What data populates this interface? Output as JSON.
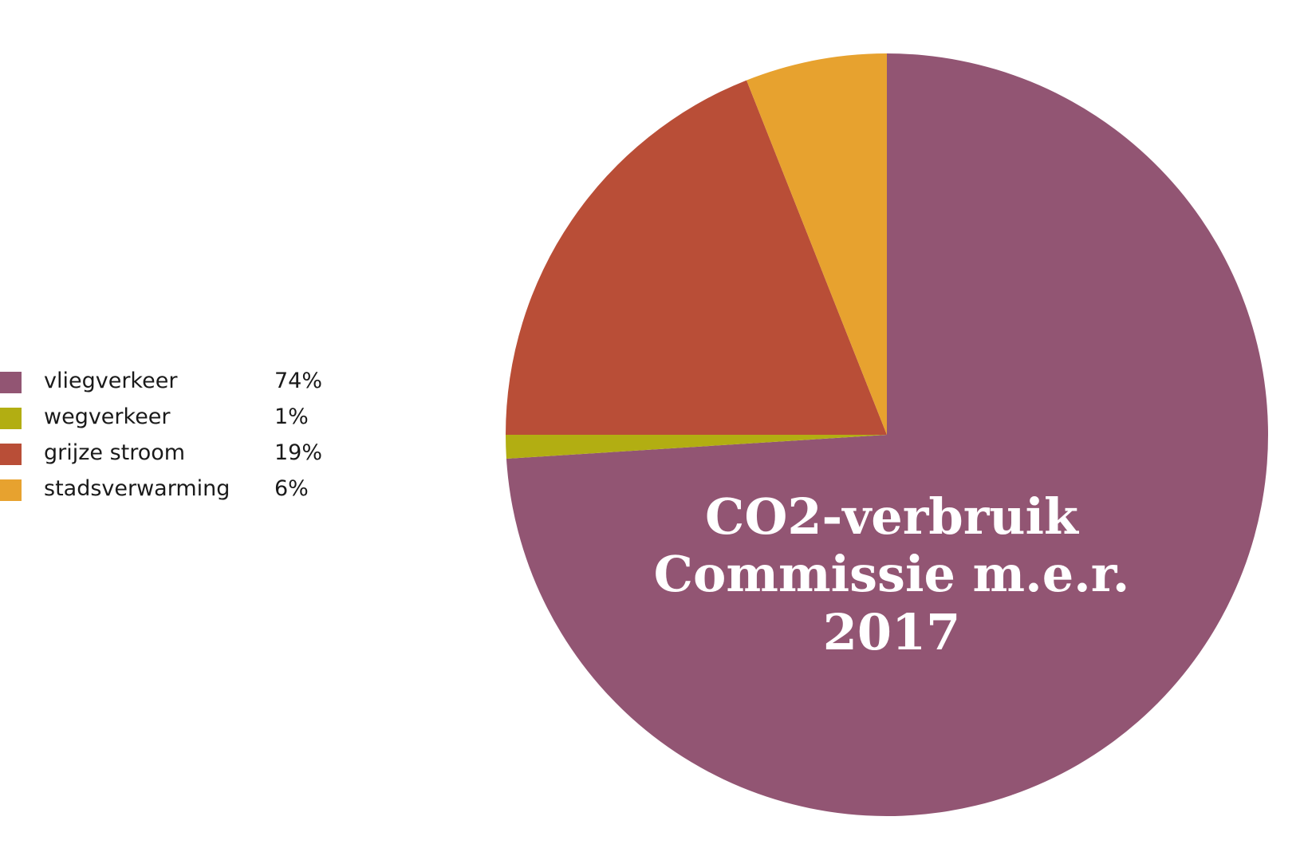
{
  "chart_data": {
    "type": "pie",
    "title_lines": [
      "CO2-verbruik",
      "Commissie m.e.r.",
      "2017"
    ],
    "slices": [
      {
        "label": "vliegverkeer",
        "value_label": "74%",
        "value": 74,
        "color": "#925573"
      },
      {
        "label": "wegverkeer",
        "value_label": "1%",
        "value": 1,
        "color": "#b2ae12"
      },
      {
        "label": "grijze stroom",
        "value_label": "19%",
        "value": 19,
        "color": "#b94e37"
      },
      {
        "label": "stadsverwarming",
        "value_label": "6%",
        "value": 6,
        "color": "#e7a22f"
      }
    ],
    "start_angle": "12 o'clock",
    "direction": "clockwise",
    "legend_position": "left"
  }
}
